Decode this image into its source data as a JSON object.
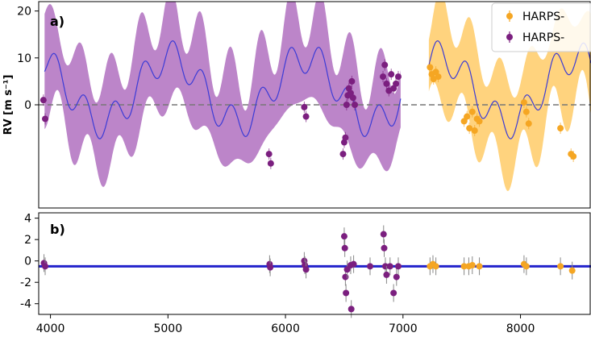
{
  "chart_data": [
    {
      "panel": "a)",
      "type": "line",
      "ylabel": "RV [m s⁻¹]",
      "xlim": [
        3900,
        8600
      ],
      "ylim": [
        -22,
        22
      ],
      "x_ticks": [
        4000,
        5000,
        6000,
        7000,
        8000
      ],
      "y_ticks": [
        0,
        10,
        20
      ],
      "zero_line": 0,
      "legend": {
        "position": "top-right",
        "entries": [
          "HARPS-",
          "HARPS-"
        ]
      },
      "colors": {
        "model": "#3b3bd6",
        "band_purple": "#b070bf",
        "band_orange": "#ffc85e",
        "purple": "#7b1f7f",
        "orange": "#f5a623",
        "dash": "#777777"
      },
      "model": {
        "segments": [
          [
            3950,
            6980
          ],
          [
            7220,
            8600
          ]
        ],
        "components": [
          {
            "offset": 3.2,
            "amp": 7,
            "period": 1150,
            "phase": 3580
          },
          {
            "amp": 3.5,
            "period": 250,
            "phase": 3980
          }
        ],
        "band_halfwidth": 9
      },
      "series": [
        {
          "name": "HARPS-",
          "color": "#f5a623",
          "x": [
            7230,
            7245,
            7260,
            7280,
            7300,
            7520,
            7545,
            7565,
            7590,
            7610,
            7630,
            7650,
            8030,
            8050,
            8070,
            8340,
            8430,
            8450
          ],
          "y": [
            8,
            6.5,
            5.5,
            7,
            6,
            -3.5,
            -2.5,
            -5,
            -1.5,
            -5.5,
            -3,
            -3.5,
            0.5,
            -1.5,
            -4,
            -5,
            -10.5,
            -11
          ]
        },
        {
          "name": "HARPS-",
          "color": "#7b1f7f",
          "x": [
            3940,
            3955,
            5860,
            5875,
            6160,
            6175,
            6490,
            6500,
            6510,
            6520,
            6530,
            6540,
            6555,
            6565,
            6575,
            6590,
            6830,
            6845,
            6860,
            6880,
            6900,
            6920,
            6940,
            6960
          ],
          "y": [
            1,
            -3,
            -10.5,
            -12.5,
            -0.5,
            -2.5,
            -10.5,
            -8,
            -7,
            0,
            2,
            3.5,
            2.5,
            5,
            1.5,
            0,
            6,
            8.5,
            4.5,
            3,
            6.5,
            3.5,
            4.5,
            6
          ]
        }
      ]
    },
    {
      "panel": "b)",
      "type": "scatter",
      "ylabel": "",
      "xlim": [
        3900,
        8600
      ],
      "ylim": [
        -5,
        4.5
      ],
      "x_ticks": [
        4000,
        5000,
        6000,
        7000,
        8000
      ],
      "y_ticks": [
        4,
        2,
        0,
        -2,
        -4
      ],
      "model_line": -0.5,
      "series": [
        {
          "name": "HARPS-",
          "color": "#f5a623",
          "x": [
            7230,
            7255,
            7280,
            7520,
            7560,
            7590,
            7650,
            8030,
            8050,
            8340,
            8440
          ],
          "y": [
            -0.5,
            -0.3,
            -0.5,
            -0.5,
            -0.5,
            -0.4,
            -0.5,
            -0.3,
            -0.5,
            -0.5,
            -0.9
          ]
        },
        {
          "name": "HARPS-",
          "color": "#7b1f7f",
          "x": [
            3945,
            3955,
            5865,
            5870,
            6160,
            6165,
            6175,
            6500,
            6505,
            6510,
            6515,
            6525,
            6555,
            6560,
            6580,
            6720,
            6835,
            6840,
            6850,
            6860,
            6890,
            6920,
            6945,
            6960
          ],
          "y": [
            -0.2,
            -0.5,
            -0.3,
            -0.6,
            0,
            -0.4,
            -0.8,
            2.3,
            1.2,
            -1.5,
            -3,
            -0.8,
            -0.4,
            -4.5,
            -0.3,
            -0.5,
            2.5,
            1.2,
            -0.5,
            -1.3,
            -0.5,
            -3,
            -1.5,
            -0.5
          ]
        }
      ]
    }
  ]
}
